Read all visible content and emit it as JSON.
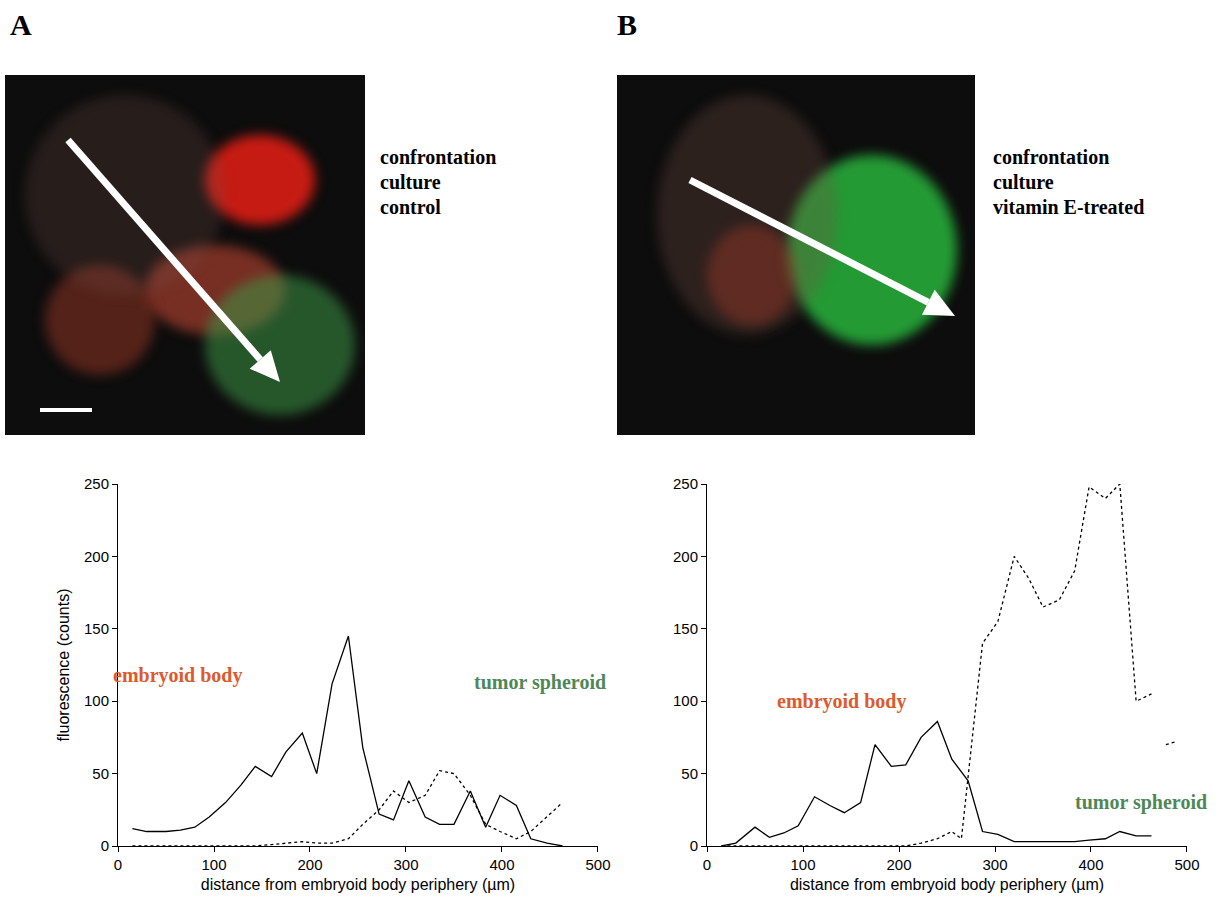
{
  "figure": {
    "panels": [
      {
        "letter": "A",
        "caption": [
          "confrontation",
          "culture",
          "control"
        ]
      },
      {
        "letter": "B",
        "caption": [
          "confrontation",
          "culture",
          "vitamin E-treated"
        ]
      }
    ]
  },
  "chart_data": [
    {
      "type": "line",
      "x_label": "distance from embryoid body periphery (µm)",
      "y_label": "fluorescence (counts)",
      "xlim": [
        0,
        500
      ],
      "xticks": [
        0,
        100,
        200,
        300,
        400,
        500
      ],
      "ylim": [
        0,
        250
      ],
      "yticks": [
        0,
        50,
        100,
        150,
        200,
        250
      ],
      "grid": false,
      "series": [
        {
          "name": "embryoid body",
          "color": "#000000",
          "line_style": "solid",
          "x": [
            15,
            30,
            50,
            65,
            80,
            95,
            112,
            128,
            143,
            160,
            175,
            192,
            207,
            223,
            240,
            255,
            272,
            287,
            303,
            320,
            335,
            350,
            367,
            383,
            398,
            415,
            430,
            447,
            463
          ],
          "values": [
            12,
            10,
            10,
            11,
            13,
            20,
            30,
            42,
            55,
            48,
            65,
            78,
            50,
            112,
            145,
            68,
            22,
            18,
            45,
            20,
            15,
            15,
            38,
            13,
            35,
            28,
            5,
            2,
            0
          ]
        },
        {
          "name": "tumor spheroid",
          "color": "#000000",
          "line_style": "dotted",
          "x": [
            15,
            30,
            50,
            65,
            80,
            95,
            112,
            128,
            143,
            160,
            175,
            192,
            207,
            223,
            240,
            255,
            272,
            287,
            303,
            320,
            335,
            350,
            367,
            383,
            398,
            415,
            430,
            447,
            463
          ],
          "values": [
            0,
            0,
            0,
            0,
            0,
            0,
            0,
            0,
            0,
            1,
            2,
            3,
            2,
            2,
            5,
            15,
            25,
            38,
            30,
            35,
            52,
            50,
            35,
            15,
            10,
            5,
            10,
            20,
            30
          ]
        }
      ],
      "annotations": [
        {
          "text": "embryoid body",
          "color": "#dc5a2c",
          "x": 62,
          "y": 118
        },
        {
          "text": "tumor spheroid",
          "color": "#4f8757",
          "x": 440,
          "y": 113
        }
      ]
    },
    {
      "type": "line",
      "x_label": "distance from embryoid body periphery (µm)",
      "xlim": [
        0,
        500
      ],
      "xticks": [
        0,
        100,
        200,
        300,
        400,
        500
      ],
      "ylim": [
        0,
        250
      ],
      "yticks": [
        0,
        50,
        100,
        150,
        200,
        250
      ],
      "grid": false,
      "series": [
        {
          "name": "embryoid body",
          "color": "#000000",
          "line_style": "solid",
          "x": [
            15,
            30,
            50,
            65,
            80,
            95,
            112,
            128,
            143,
            160,
            175,
            192,
            207,
            223,
            240,
            255,
            272,
            287,
            303,
            320,
            335,
            350,
            367,
            383,
            398,
            415,
            430,
            447,
            463
          ],
          "values": [
            0,
            2,
            13,
            6,
            9,
            14,
            34,
            28,
            23,
            30,
            70,
            55,
            56,
            75,
            86,
            60,
            45,
            10,
            8,
            3,
            3,
            3,
            3,
            3,
            4,
            5,
            10,
            7,
            7
          ]
        },
        {
          "name": "tumor spheroid",
          "color": "#000000",
          "line_style": "dotted",
          "x": [
            15,
            30,
            50,
            65,
            80,
            95,
            112,
            128,
            143,
            160,
            175,
            192,
            207,
            223,
            240,
            255,
            265,
            287,
            303,
            320,
            335,
            350,
            367,
            383,
            398,
            415,
            430,
            447,
            463,
            470,
            478,
            488
          ],
          "values": [
            0,
            0,
            0,
            0,
            0,
            0,
            0,
            0,
            0,
            0,
            0,
            0,
            0,
            2,
            5,
            10,
            5,
            140,
            155,
            200,
            185,
            165,
            170,
            190,
            248,
            240,
            250,
            100,
            105,
            null,
            70,
            72
          ]
        }
      ],
      "annotations": [
        {
          "text": "embryoid body",
          "color": "#dc5a2c",
          "x": 140,
          "y": 100
        },
        {
          "text": "tumor spheroid",
          "color": "#4f8757",
          "x": 452,
          "y": 30
        }
      ]
    }
  ]
}
